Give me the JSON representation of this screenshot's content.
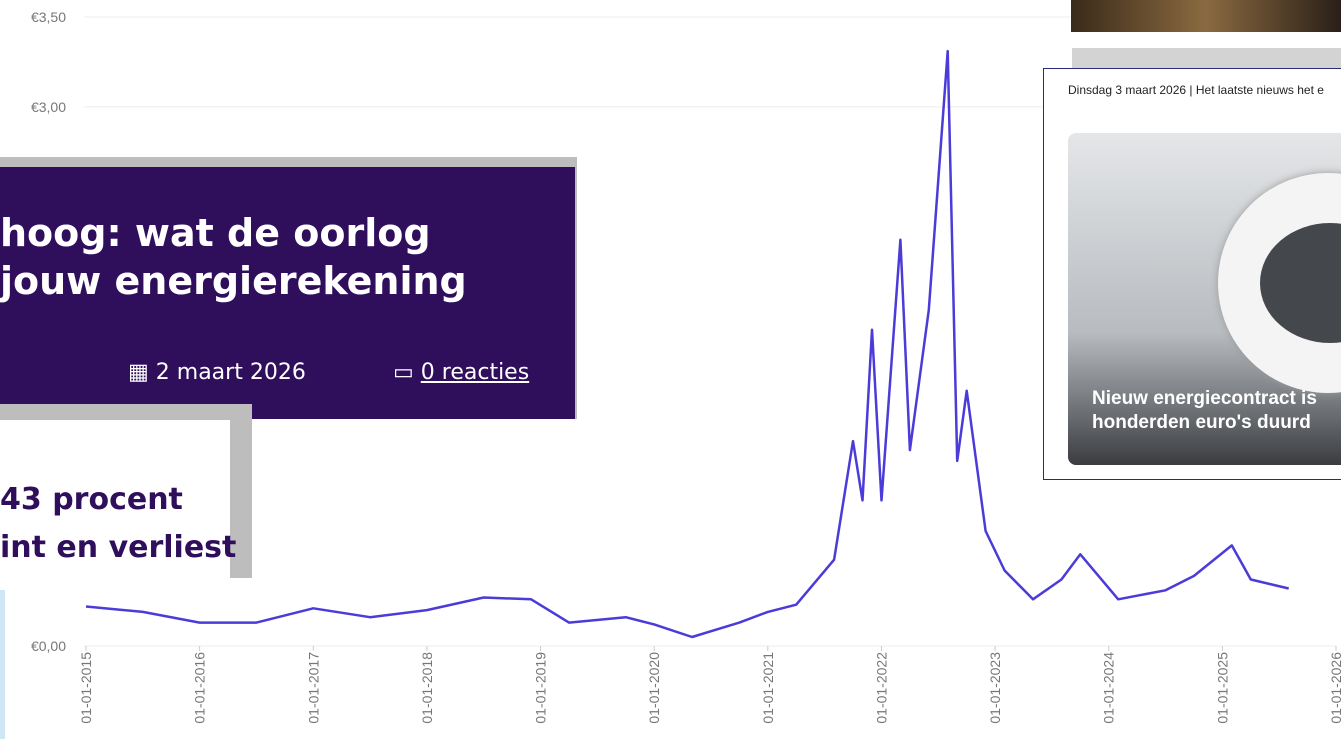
{
  "chart_data": {
    "type": "line",
    "x": [
      "01-01-2015",
      "01-07-2015",
      "01-01-2016",
      "01-07-2016",
      "01-01-2017",
      "01-07-2017",
      "01-01-2018",
      "01-07-2018",
      "01-12-2018",
      "01-04-2019",
      "01-10-2019",
      "01-01-2020",
      "01-05-2020",
      "01-10-2020",
      "01-01-2021",
      "01-04-2021",
      "01-08-2021",
      "01-10-2021",
      "01-11-2021",
      "01-12-2021",
      "01-01-2022",
      "01-03-2022",
      "01-04-2022",
      "01-06-2022",
      "01-08-2022",
      "01-09-2022",
      "01-10-2022",
      "01-12-2022",
      "01-02-2023",
      "01-05-2023",
      "01-08-2023",
      "01-10-2023",
      "01-02-2024",
      "01-07-2024",
      "01-10-2024",
      "01-02-2025",
      "01-04-2025",
      "01-08-2025"
    ],
    "series": [
      {
        "color": "#4b3bd8",
        "values": [
          0.22,
          0.19,
          0.13,
          0.13,
          0.21,
          0.16,
          0.2,
          0.27,
          0.26,
          0.13,
          0.16,
          0.12,
          0.05,
          0.13,
          0.19,
          0.23,
          0.48,
          1.14,
          0.81,
          1.76,
          0.81,
          2.26,
          1.09,
          1.87,
          3.31,
          1.03,
          1.42,
          0.64,
          0.42,
          0.26,
          0.37,
          0.51,
          0.26,
          0.31,
          0.39,
          0.56,
          0.37,
          0.32
        ]
      }
    ],
    "xlim": [
      "01-01-2015",
      "01-01-2026"
    ],
    "xticks": [
      "01-01-2015",
      "01-01-2016",
      "01-01-2017",
      "01-01-2018",
      "01-01-2019",
      "01-01-2020",
      "01-01-2021",
      "01-01-2022",
      "01-01-2023",
      "01-01-2024",
      "01-01-2025",
      "01-01-2026"
    ],
    "ylim": [
      0,
      3.5
    ],
    "yticks": [
      {
        "value": 0,
        "label": "€0,00"
      },
      {
        "value": 3,
        "label": "€3,00"
      },
      {
        "value": 3.5,
        "label": "€3,50"
      }
    ],
    "grid": true
  },
  "article": {
    "title_line1": "hoog: wat de oorlog",
    "title_line2": "jouw energierekening",
    "date": "2 maart 2026",
    "comments": "0 reacties"
  },
  "teaser": {
    "line1": "43 procent",
    "line2": "int en verliest"
  },
  "news": {
    "header": "Dinsdag 3 maart 2026 | Het laatste nieuws het e",
    "headline_line1": "Nieuw energiecontract is",
    "headline_line2": "honderden euro's duurd"
  }
}
